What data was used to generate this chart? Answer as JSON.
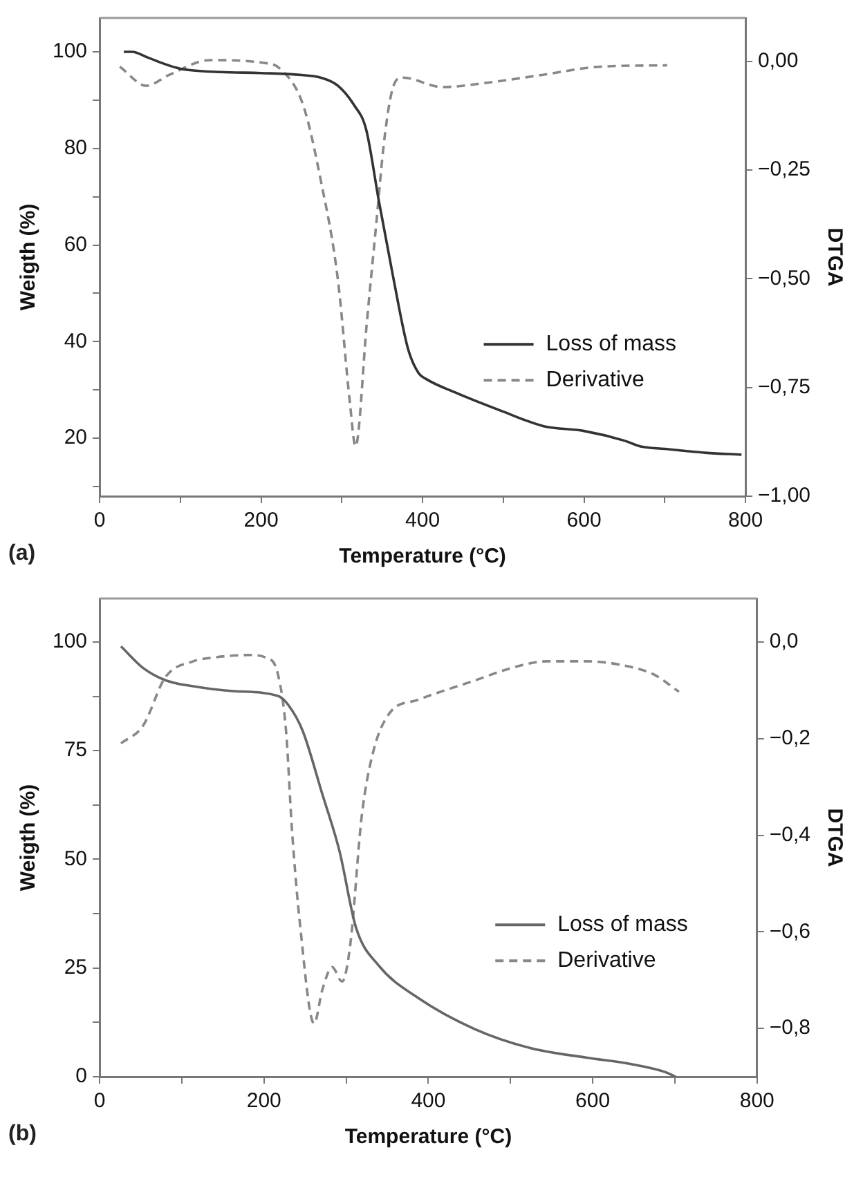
{
  "chart_data": [
    {
      "type": "line",
      "xlabel": "Temperature (°C)",
      "ylabel": "Weigth (%)",
      "y2label": "DTGA",
      "annotations": [
        "(a)"
      ],
      "legend": "center right",
      "grid": false,
      "xlim": [
        0,
        800
      ],
      "xticks": [
        0,
        {
          "value": 100,
          "label": null
        },
        200,
        {
          "value": 300,
          "label": null
        },
        400,
        {
          "value": 500,
          "label": null
        },
        600,
        {
          "value": 700,
          "label": null
        },
        800
      ],
      "ylim": [
        8,
        107
      ],
      "yticks": [
        {
          "value": 10,
          "label": null
        },
        20,
        {
          "value": 30,
          "label": null
        },
        40,
        {
          "value": 50,
          "label": null
        },
        60,
        {
          "value": 70,
          "label": null
        },
        80,
        {
          "value": 90,
          "label": null
        },
        100
      ],
      "y2lim": [
        -1.0,
        0.1
      ],
      "y2ticks": [
        {
          "value": -1.0,
          "label": "−1,00"
        },
        {
          "value": -0.75,
          "label": "−0,75"
        },
        {
          "value": -0.5,
          "label": "−0,50"
        },
        {
          "value": -0.25,
          "label": "−0,25"
        },
        {
          "value": 0,
          "label": "0,00"
        }
      ],
      "series": [
        {
          "name": "Loss of mass",
          "color": "#333333",
          "line_style": "solid",
          "x": [
            30,
            40,
            60,
            80,
            100,
            150,
            200,
            250,
            275,
            295,
            315,
            330,
            346,
            364,
            382,
            395,
            404,
            440,
            500,
            550,
            600,
            650,
            670,
            700,
            750,
            795
          ],
          "values": [
            100,
            100,
            98.8,
            97.5,
            96.5,
            95.8,
            95.6,
            95.2,
            94.6,
            93,
            89,
            84,
            69,
            53,
            38.5,
            33.5,
            32.3,
            29.5,
            25.5,
            22.5,
            21.5,
            19.5,
            18.3,
            17.8,
            17,
            16.6
          ]
        },
        {
          "name": "Derivative",
          "color": "#888888",
          "line_style": "dashed",
          "axis": "y2",
          "x": [
            25,
            58,
            86,
            137,
            202,
            223,
            252,
            274,
            295,
            310,
            317,
            331,
            342,
            353,
            364,
            375,
            425,
            476,
            548,
            620,
            703
          ],
          "values": [
            -0.012,
            -0.056,
            -0.031,
            0.003,
            -0.003,
            -0.016,
            -0.1,
            -0.274,
            -0.5,
            -0.785,
            -0.885,
            -0.6,
            -0.386,
            -0.174,
            -0.056,
            -0.037,
            -0.059,
            -0.05,
            -0.031,
            -0.012,
            -0.009
          ]
        }
      ]
    },
    {
      "type": "line",
      "xlabel": "Temperature (°C)",
      "ylabel": "Weigth (%)",
      "y2label": "DTGA",
      "annotations": [
        "(b)"
      ],
      "legend": "center right",
      "grid": false,
      "xlim": [
        0,
        800
      ],
      "xticks": [
        0,
        {
          "value": 100,
          "label": null
        },
        200,
        {
          "value": 300,
          "label": null
        },
        400,
        {
          "value": 500,
          "label": null
        },
        600,
        {
          "value": 700,
          "label": null
        },
        800
      ],
      "ylim": [
        0,
        110
      ],
      "yticks": [
        0,
        {
          "value": 12.5,
          "label": null
        },
        25,
        {
          "value": 37.5,
          "label": null
        },
        50,
        {
          "value": 62.5,
          "label": null
        },
        75,
        {
          "value": 87.5,
          "label": null
        },
        100
      ],
      "y2lim": [
        -0.9,
        0.09
      ],
      "y2ticks": [
        {
          "value": -0.8,
          "label": "−0,8"
        },
        {
          "value": -0.6,
          "label": "−0,6"
        },
        {
          "value": -0.4,
          "label": "−0,4"
        },
        {
          "value": -0.2,
          "label": "−0,2"
        },
        {
          "value": 0,
          "label": "0,0"
        }
      ],
      "series": [
        {
          "name": "Loss of mass",
          "color": "#666666",
          "line_style": "solid",
          "x": [
            26,
            53,
            80,
            114,
            162,
            217,
            230,
            247,
            271,
            292,
            312,
            340,
            387,
            456,
            524,
            592,
            647,
            688,
            701
          ],
          "values": [
            99,
            94,
            91.2,
            89.8,
            88.7,
            87.6,
            85.4,
            79.6,
            65,
            51.8,
            34.3,
            25.5,
            18.2,
            11,
            6.6,
            4.4,
            2.9,
            1.1,
            0
          ]
        },
        {
          "name": "Derivative",
          "color": "#888888",
          "line_style": "dashed",
          "axis": "y2",
          "x": [
            26,
            53,
            80,
            114,
            135,
            183,
            203,
            217,
            227,
            234,
            244,
            261,
            271,
            283,
            295,
            305,
            319,
            333,
            353,
            387,
            456,
            503,
            544,
            592,
            633,
            674,
            705
          ],
          "values": [
            -0.21,
            -0.173,
            -0.073,
            -0.04,
            -0.033,
            -0.027,
            -0.033,
            -0.067,
            -0.187,
            -0.387,
            -0.587,
            -0.79,
            -0.72,
            -0.673,
            -0.703,
            -0.627,
            -0.36,
            -0.227,
            -0.147,
            -0.12,
            -0.08,
            -0.053,
            -0.04,
            -0.04,
            -0.047,
            -0.067,
            -0.103
          ]
        }
      ]
    }
  ]
}
